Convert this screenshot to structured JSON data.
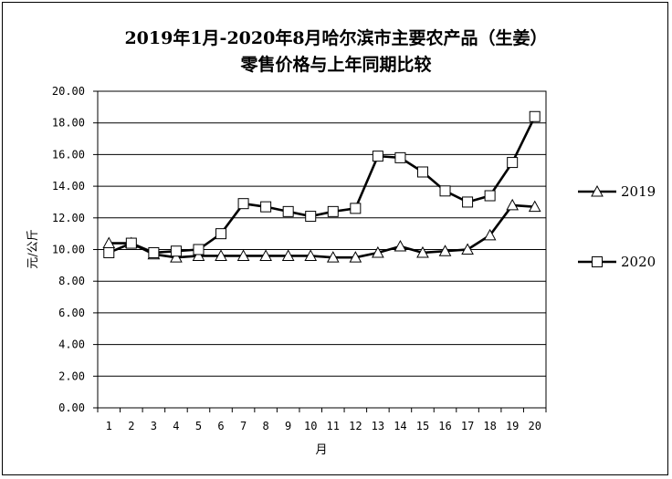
{
  "chart_data": {
    "type": "line",
    "title": "2019年1月-2020年8月哈尔滨市主要农产品（生姜）",
    "subtitle": "零售价格与上年同期比较",
    "xlabel": "月",
    "ylabel": "元/公斤",
    "categories": [
      "1",
      "2",
      "3",
      "4",
      "5",
      "6",
      "7",
      "8",
      "9",
      "10",
      "11",
      "12",
      "13",
      "14",
      "15",
      "16",
      "17",
      "18",
      "19",
      "20"
    ],
    "ylim": [
      0,
      20
    ],
    "yticks": [
      "0.00",
      "2.00",
      "4.00",
      "6.00",
      "8.00",
      "10.00",
      "12.00",
      "14.00",
      "16.00",
      "18.00",
      "20.00"
    ],
    "grid": true,
    "legend_position": "right",
    "series": [
      {
        "name": "2019",
        "marker": "triangle",
        "values": [
          10.4,
          10.4,
          9.7,
          9.5,
          9.6,
          9.6,
          9.6,
          9.6,
          9.6,
          9.6,
          9.5,
          9.5,
          9.8,
          10.2,
          9.8,
          9.9,
          10.0,
          10.9,
          12.8,
          12.7
        ]
      },
      {
        "name": "2020",
        "marker": "square",
        "values": [
          9.8,
          10.4,
          9.8,
          9.9,
          10.0,
          11.0,
          12.9,
          12.7,
          12.4,
          12.1,
          12.4,
          12.6,
          15.9,
          15.8,
          14.9,
          13.7,
          13.0,
          13.4,
          15.5,
          18.4
        ]
      }
    ]
  }
}
